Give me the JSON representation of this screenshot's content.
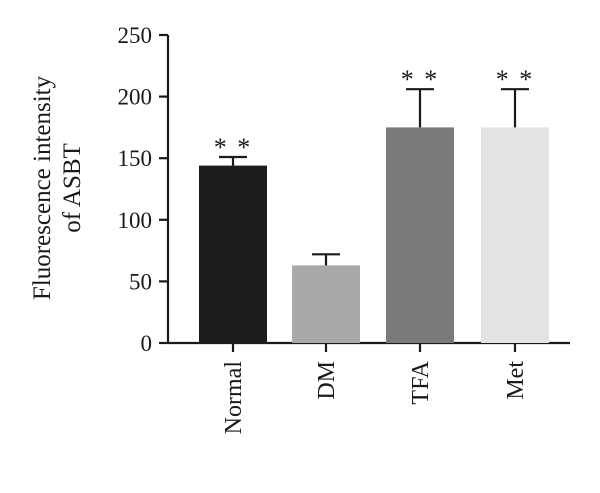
{
  "chart_data": {
    "type": "bar",
    "categories": [
      "Normal",
      "DM",
      "TFA",
      "Met"
    ],
    "values": [
      144,
      63,
      175,
      175
    ],
    "errors": [
      7,
      9,
      31,
      31
    ],
    "significance": [
      "* *",
      "",
      "* *",
      "* *"
    ],
    "colors": [
      "#1c1c1c",
      "#a9a9a9",
      "#7a7a7a",
      "#e3e3e3"
    ],
    "ylabel_line1": "Fluorescence intensity",
    "ylabel_line2": "of ASBT",
    "ylim": [
      0,
      250
    ],
    "yticks": [
      0,
      50,
      100,
      150,
      200,
      250
    ],
    "grid": false
  }
}
